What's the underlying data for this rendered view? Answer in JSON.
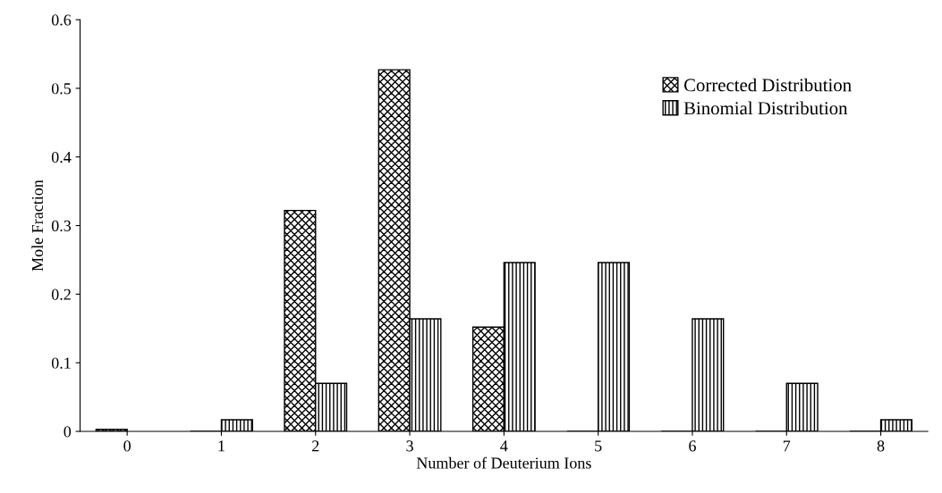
{
  "chart_data": {
    "type": "bar",
    "xlabel": "Number of Deuterium Ions",
    "ylabel": "Mole Fraction",
    "categories": [
      "0",
      "1",
      "2",
      "3",
      "4",
      "5",
      "6",
      "7",
      "8"
    ],
    "series": [
      {
        "name": "Corrected Distribution",
        "color": "#000000",
        "values": [
          0.003,
          0,
          0.322,
          0.527,
          0.152,
          0,
          0,
          0,
          0
        ]
      },
      {
        "name": "Binomial Distribution",
        "color": "#000000",
        "values": [
          null,
          0.017,
          0.07,
          0.164,
          0.246,
          0.246,
          0.164,
          0.07,
          0.017
        ]
      }
    ],
    "ylim": [
      0,
      0.6
    ],
    "yticks": [
      0,
      0.1,
      0.2,
      0.3,
      0.4,
      0.5,
      0.6
    ],
    "grid": false,
    "legend": "top right"
  }
}
